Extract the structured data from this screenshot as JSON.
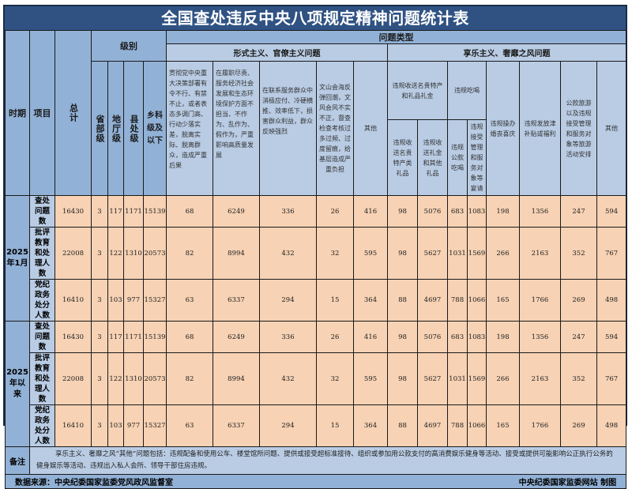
{
  "title": "全国查处违反中央八项规定精神问题统计表",
  "colors": {
    "title_bar": "#2f5283",
    "header": "#b9cce4",
    "header_dark": "#92b1d6",
    "data_cell": "#f7d2b4"
  },
  "headers": {
    "period": "时期",
    "item": "项目",
    "total": "总计",
    "level": "级别",
    "levels": [
      "省部级",
      "地厅级",
      "县处级",
      "乡科级及以下"
    ],
    "problem_type": "问题类型",
    "formalism": "形式主义、官僚主义问题",
    "formalism_cols": [
      "贯彻党中央重大决策部署有令不行、有禁不止，或者表态多调门高、行动少落实差，脱离实际、脱离群众，造成严重后果",
      "在履职尽责、服务经济社会发展和生态环境保护方面不担当、不作为、乱作为、假作为，严重影响高质量发展",
      "在联系服务群众中消极应付、冷硬横推、效率低下，损害群众利益，群众反映强烈",
      "文山会海反弹回潮，文风会风不实不正，督查检查考核过多过频、过度留痕，给基层造成严重负担",
      "其他"
    ],
    "hedonism": "享乐主义、奢靡之风问题",
    "gifts_group": "违规收送名贵特产和礼品礼金",
    "gifts_cols": [
      "违规收送名贵特产类礼品",
      "违规收送礼金和其他礼品"
    ],
    "eating_group": "违规吃喝",
    "eating_cols": [
      "违规公款吃喝",
      "违规接受管理和服务对象等宴请"
    ],
    "hedonism_cols": [
      "违规操办婚丧喜庆",
      "违规发放津补贴或福利",
      "公款旅游以及违规接受管理和服务对象等旅游活动安排",
      "其他"
    ]
  },
  "groups": [
    {
      "period": "2025年1月",
      "rows": [
        {
          "item": "查处问题数",
          "values": [
            "16430",
            "3",
            "117",
            "1171",
            "15139",
            "68",
            "6249",
            "336",
            "26",
            "416",
            "98",
            "5076",
            "683",
            "1083",
            "198",
            "1356",
            "247",
            "594"
          ]
        },
        {
          "item": "批评教育和处理人数",
          "values": [
            "22008",
            "3",
            "122",
            "1310",
            "20573",
            "82",
            "8994",
            "432",
            "32",
            "595",
            "98",
            "5627",
            "1031",
            "1569",
            "266",
            "2163",
            "352",
            "767"
          ]
        },
        {
          "item": "党纪政务处分人数",
          "values": [
            "16410",
            "3",
            "103",
            "977",
            "15327",
            "63",
            "6337",
            "294",
            "15",
            "364",
            "88",
            "4697",
            "788",
            "1066",
            "165",
            "1766",
            "269",
            "498"
          ]
        }
      ]
    },
    {
      "period": "2025年以来",
      "rows": [
        {
          "item": "查处问题数",
          "values": [
            "16430",
            "3",
            "117",
            "1171",
            "15139",
            "68",
            "6249",
            "336",
            "26",
            "416",
            "98",
            "5076",
            "683",
            "1083",
            "198",
            "1356",
            "247",
            "594"
          ]
        },
        {
          "item": "批评教育和处理人数",
          "values": [
            "22008",
            "3",
            "122",
            "1310",
            "20573",
            "82",
            "8994",
            "432",
            "32",
            "595",
            "98",
            "5627",
            "1031",
            "1569",
            "266",
            "2163",
            "352",
            "767"
          ]
        },
        {
          "item": "党纪政务处分人数",
          "values": [
            "16410",
            "3",
            "103",
            "977",
            "15327",
            "63",
            "6337",
            "294",
            "15",
            "364",
            "88",
            "4697",
            "788",
            "1066",
            "165",
            "1766",
            "269",
            "498"
          ]
        }
      ]
    }
  ],
  "note": {
    "label": "备注",
    "text": "享乐主义、奢靡之风“其他”问题包括：违规配备和使用公车、楼堂馆所问题、提供或接受超标准接待、组织或参加用公款支付的高消费娱乐健身等活动、接受或提供可能影响公正执行公务的健身娱乐等活动、违规出入私人会所、领导干部住房违规。"
  },
  "source": "数据来源：中央纪委国家监委党风政风监督室",
  "credit": "中央纪委国家监委网站 制图"
}
